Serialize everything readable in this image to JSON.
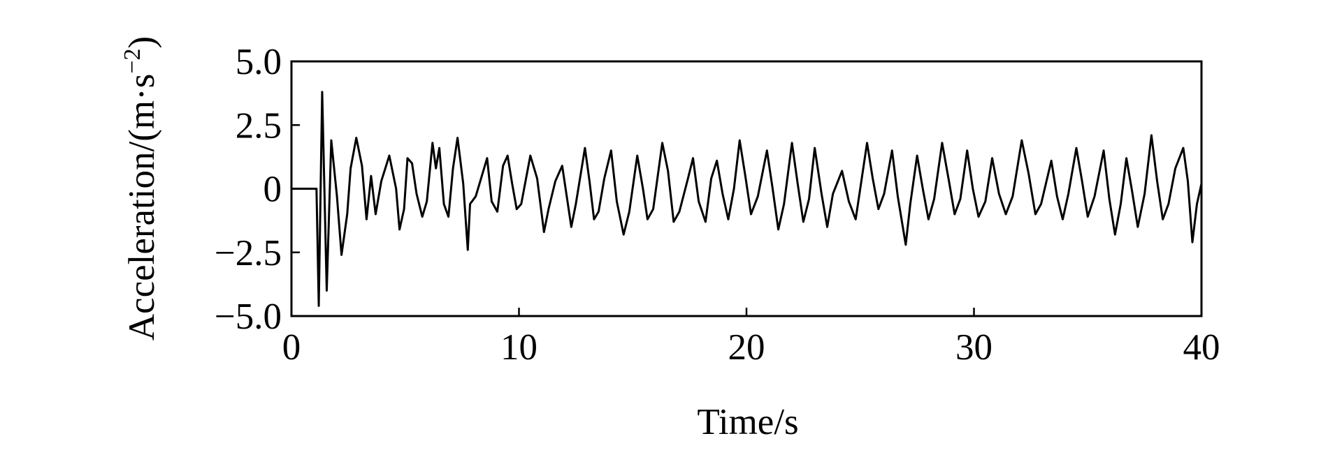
{
  "chart_data": {
    "type": "line",
    "xlabel": "Time/s",
    "ylabel": {
      "main": "Acceleration/(m·s",
      "sup": "−2",
      "end": ")"
    },
    "xlim": [
      0,
      40
    ],
    "ylim": [
      -5,
      5
    ],
    "xticks": [
      0,
      10,
      20,
      30,
      40
    ],
    "yticks": [
      {
        "value": 5,
        "label": "5.0"
      },
      {
        "value": 2.5,
        "label": "2.5"
      },
      0,
      {
        "value": -2.5,
        "label": "−2.5"
      },
      {
        "value": -5,
        "label": "−5.0"
      }
    ],
    "grid": false,
    "series": [
      {
        "color": "#000000",
        "x": [
          0,
          1.1,
          1.2,
          1.35,
          1.55,
          1.75,
          2.0,
          2.2,
          2.45,
          2.6,
          2.85,
          3.1,
          3.3,
          3.5,
          3.7,
          3.95,
          4.3,
          4.6,
          4.75,
          4.95,
          5.1,
          5.3,
          5.5,
          5.75,
          5.95,
          6.2,
          6.35,
          6.5,
          6.7,
          6.9,
          7.1,
          7.3,
          7.55,
          7.75,
          7.85,
          8.1,
          8.4,
          8.6,
          8.8,
          9.05,
          9.3,
          9.5,
          9.7,
          9.9,
          10.1,
          10.5,
          10.8,
          11.1,
          11.3,
          11.6,
          11.9,
          12.1,
          12.3,
          12.5,
          12.9,
          13.1,
          13.3,
          13.5,
          13.75,
          14.05,
          14.3,
          14.6,
          14.85,
          15.2,
          15.45,
          15.65,
          15.9,
          16.3,
          16.55,
          16.8,
          17.05,
          17.4,
          17.65,
          17.9,
          18.2,
          18.45,
          18.7,
          18.95,
          19.2,
          19.45,
          19.7,
          19.95,
          20.2,
          20.5,
          20.9,
          21.15,
          21.4,
          21.65,
          22.0,
          22.25,
          22.5,
          22.75,
          23.0,
          23.3,
          23.55,
          23.8,
          24.2,
          24.5,
          24.8,
          25.05,
          25.3,
          25.55,
          25.8,
          26.05,
          26.4,
          26.65,
          27.0,
          27.2,
          27.5,
          27.75,
          28.0,
          28.25,
          28.6,
          28.9,
          29.15,
          29.4,
          29.7,
          29.95,
          30.2,
          30.5,
          30.8,
          31.1,
          31.4,
          31.7,
          32.1,
          32.4,
          32.7,
          32.95,
          33.4,
          33.65,
          33.9,
          34.15,
          34.5,
          34.75,
          35.0,
          35.3,
          35.7,
          35.95,
          36.2,
          36.45,
          36.7,
          36.95,
          37.2,
          37.5,
          37.8,
          38.05,
          38.3,
          38.55,
          38.85,
          39.2,
          39.4,
          39.6,
          39.8,
          40.0
        ],
        "values": [
          0,
          0,
          -4.6,
          3.8,
          -4.0,
          1.9,
          -0.3,
          -2.6,
          -1.0,
          0.8,
          2.0,
          0.9,
          -1.2,
          0.5,
          -1.0,
          0.3,
          1.3,
          0.0,
          -1.6,
          -0.8,
          1.2,
          1.0,
          -0.2,
          -1.1,
          -0.5,
          1.8,
          0.8,
          1.6,
          -0.6,
          -1.1,
          0.8,
          2.0,
          0.2,
          -2.4,
          -0.6,
          -0.3,
          0.6,
          1.2,
          -0.5,
          -0.9,
          0.9,
          1.3,
          0.2,
          -0.8,
          -0.6,
          1.3,
          0.4,
          -1.7,
          -0.8,
          0.3,
          0.9,
          -0.3,
          -1.5,
          -0.6,
          1.6,
          0.3,
          -1.2,
          -0.9,
          0.4,
          1.5,
          -0.5,
          -1.8,
          -0.9,
          1.3,
          0.0,
          -1.2,
          -0.8,
          1.8,
          0.7,
          -1.3,
          -0.9,
          0.3,
          1.2,
          -0.5,
          -1.3,
          0.4,
          1.1,
          -0.2,
          -1.2,
          0.0,
          1.9,
          0.5,
          -1.0,
          -0.3,
          1.5,
          0.0,
          -1.6,
          -0.6,
          1.8,
          0.2,
          -1.3,
          -0.4,
          1.6,
          -0.2,
          -1.5,
          -0.2,
          0.7,
          -0.5,
          -1.2,
          0.3,
          1.8,
          0.4,
          -0.8,
          -0.2,
          1.5,
          -0.3,
          -2.2,
          -0.6,
          1.3,
          0.0,
          -1.2,
          -0.4,
          1.8,
          0.3,
          -1.0,
          -0.4,
          1.5,
          0.0,
          -1.1,
          -0.5,
          1.2,
          -0.2,
          -1.0,
          -0.3,
          1.9,
          0.6,
          -1.0,
          -0.6,
          1.1,
          -0.3,
          -1.2,
          -0.2,
          1.6,
          0.3,
          -1.1,
          -0.3,
          1.5,
          -0.4,
          -1.8,
          -0.6,
          1.2,
          -0.1,
          -1.5,
          -0.2,
          2.1,
          0.3,
          -1.2,
          -0.6,
          0.8,
          1.6,
          0.3,
          -2.1,
          -0.6,
          0.2
        ]
      }
    ]
  }
}
